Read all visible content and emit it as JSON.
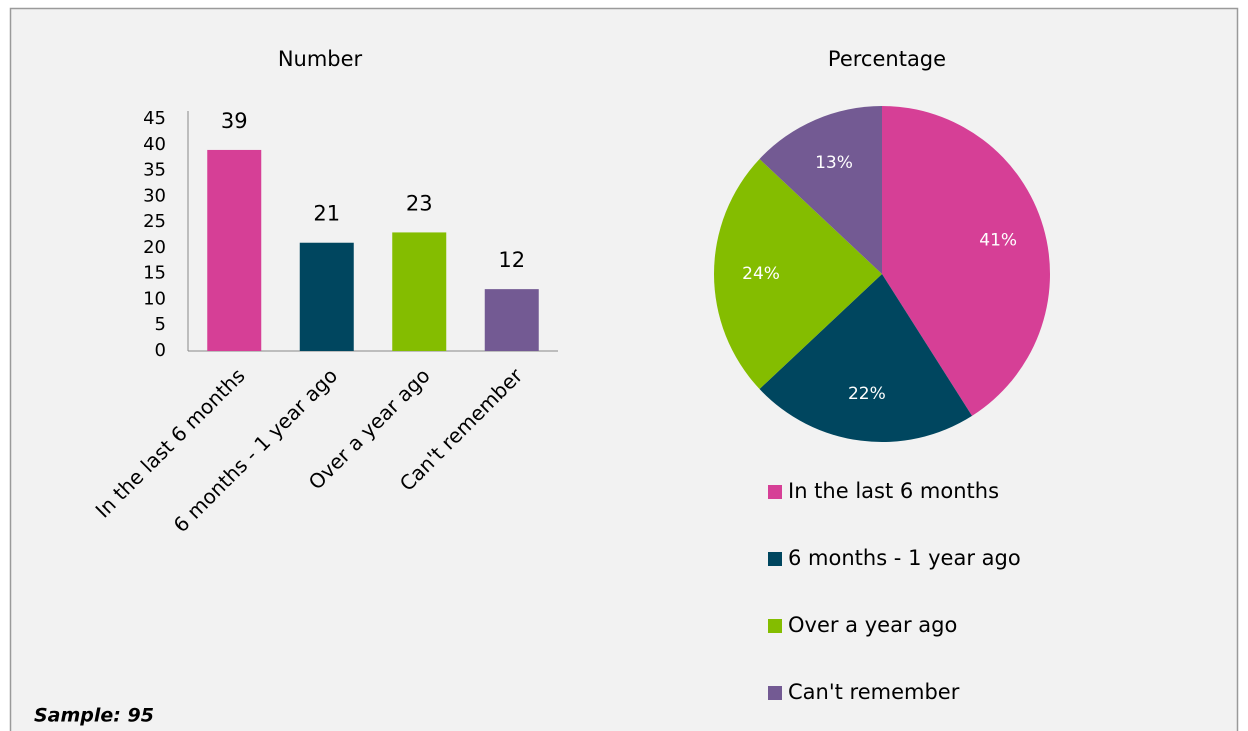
{
  "chart_data": [
    {
      "type": "bar",
      "title": "Number",
      "categories": [
        "In the last 6 months",
        "6 months - 1 year ago",
        "Over a year ago",
        "Can't remember"
      ],
      "values": [
        39,
        21,
        23,
        12
      ],
      "colors": [
        "#d63f96",
        "#00465f",
        "#84bd00",
        "#735a93"
      ],
      "ylim": [
        0,
        45
      ],
      "yticks": [
        0,
        5,
        10,
        15,
        20,
        25,
        30,
        35,
        40,
        45
      ],
      "grid": false
    },
    {
      "type": "pie",
      "title": "Percentage",
      "categories": [
        "In the last 6 months",
        "6 months - 1 year ago",
        "Over a year ago",
        "Can't remember"
      ],
      "values": [
        41,
        22,
        24,
        13
      ],
      "value_labels": [
        "41%",
        "22%",
        "24%",
        "13%"
      ],
      "colors": [
        "#d63f96",
        "#00465f",
        "#84bd00",
        "#735a93"
      ],
      "legend": "bottom"
    }
  ],
  "footnote": "Sample: 95"
}
